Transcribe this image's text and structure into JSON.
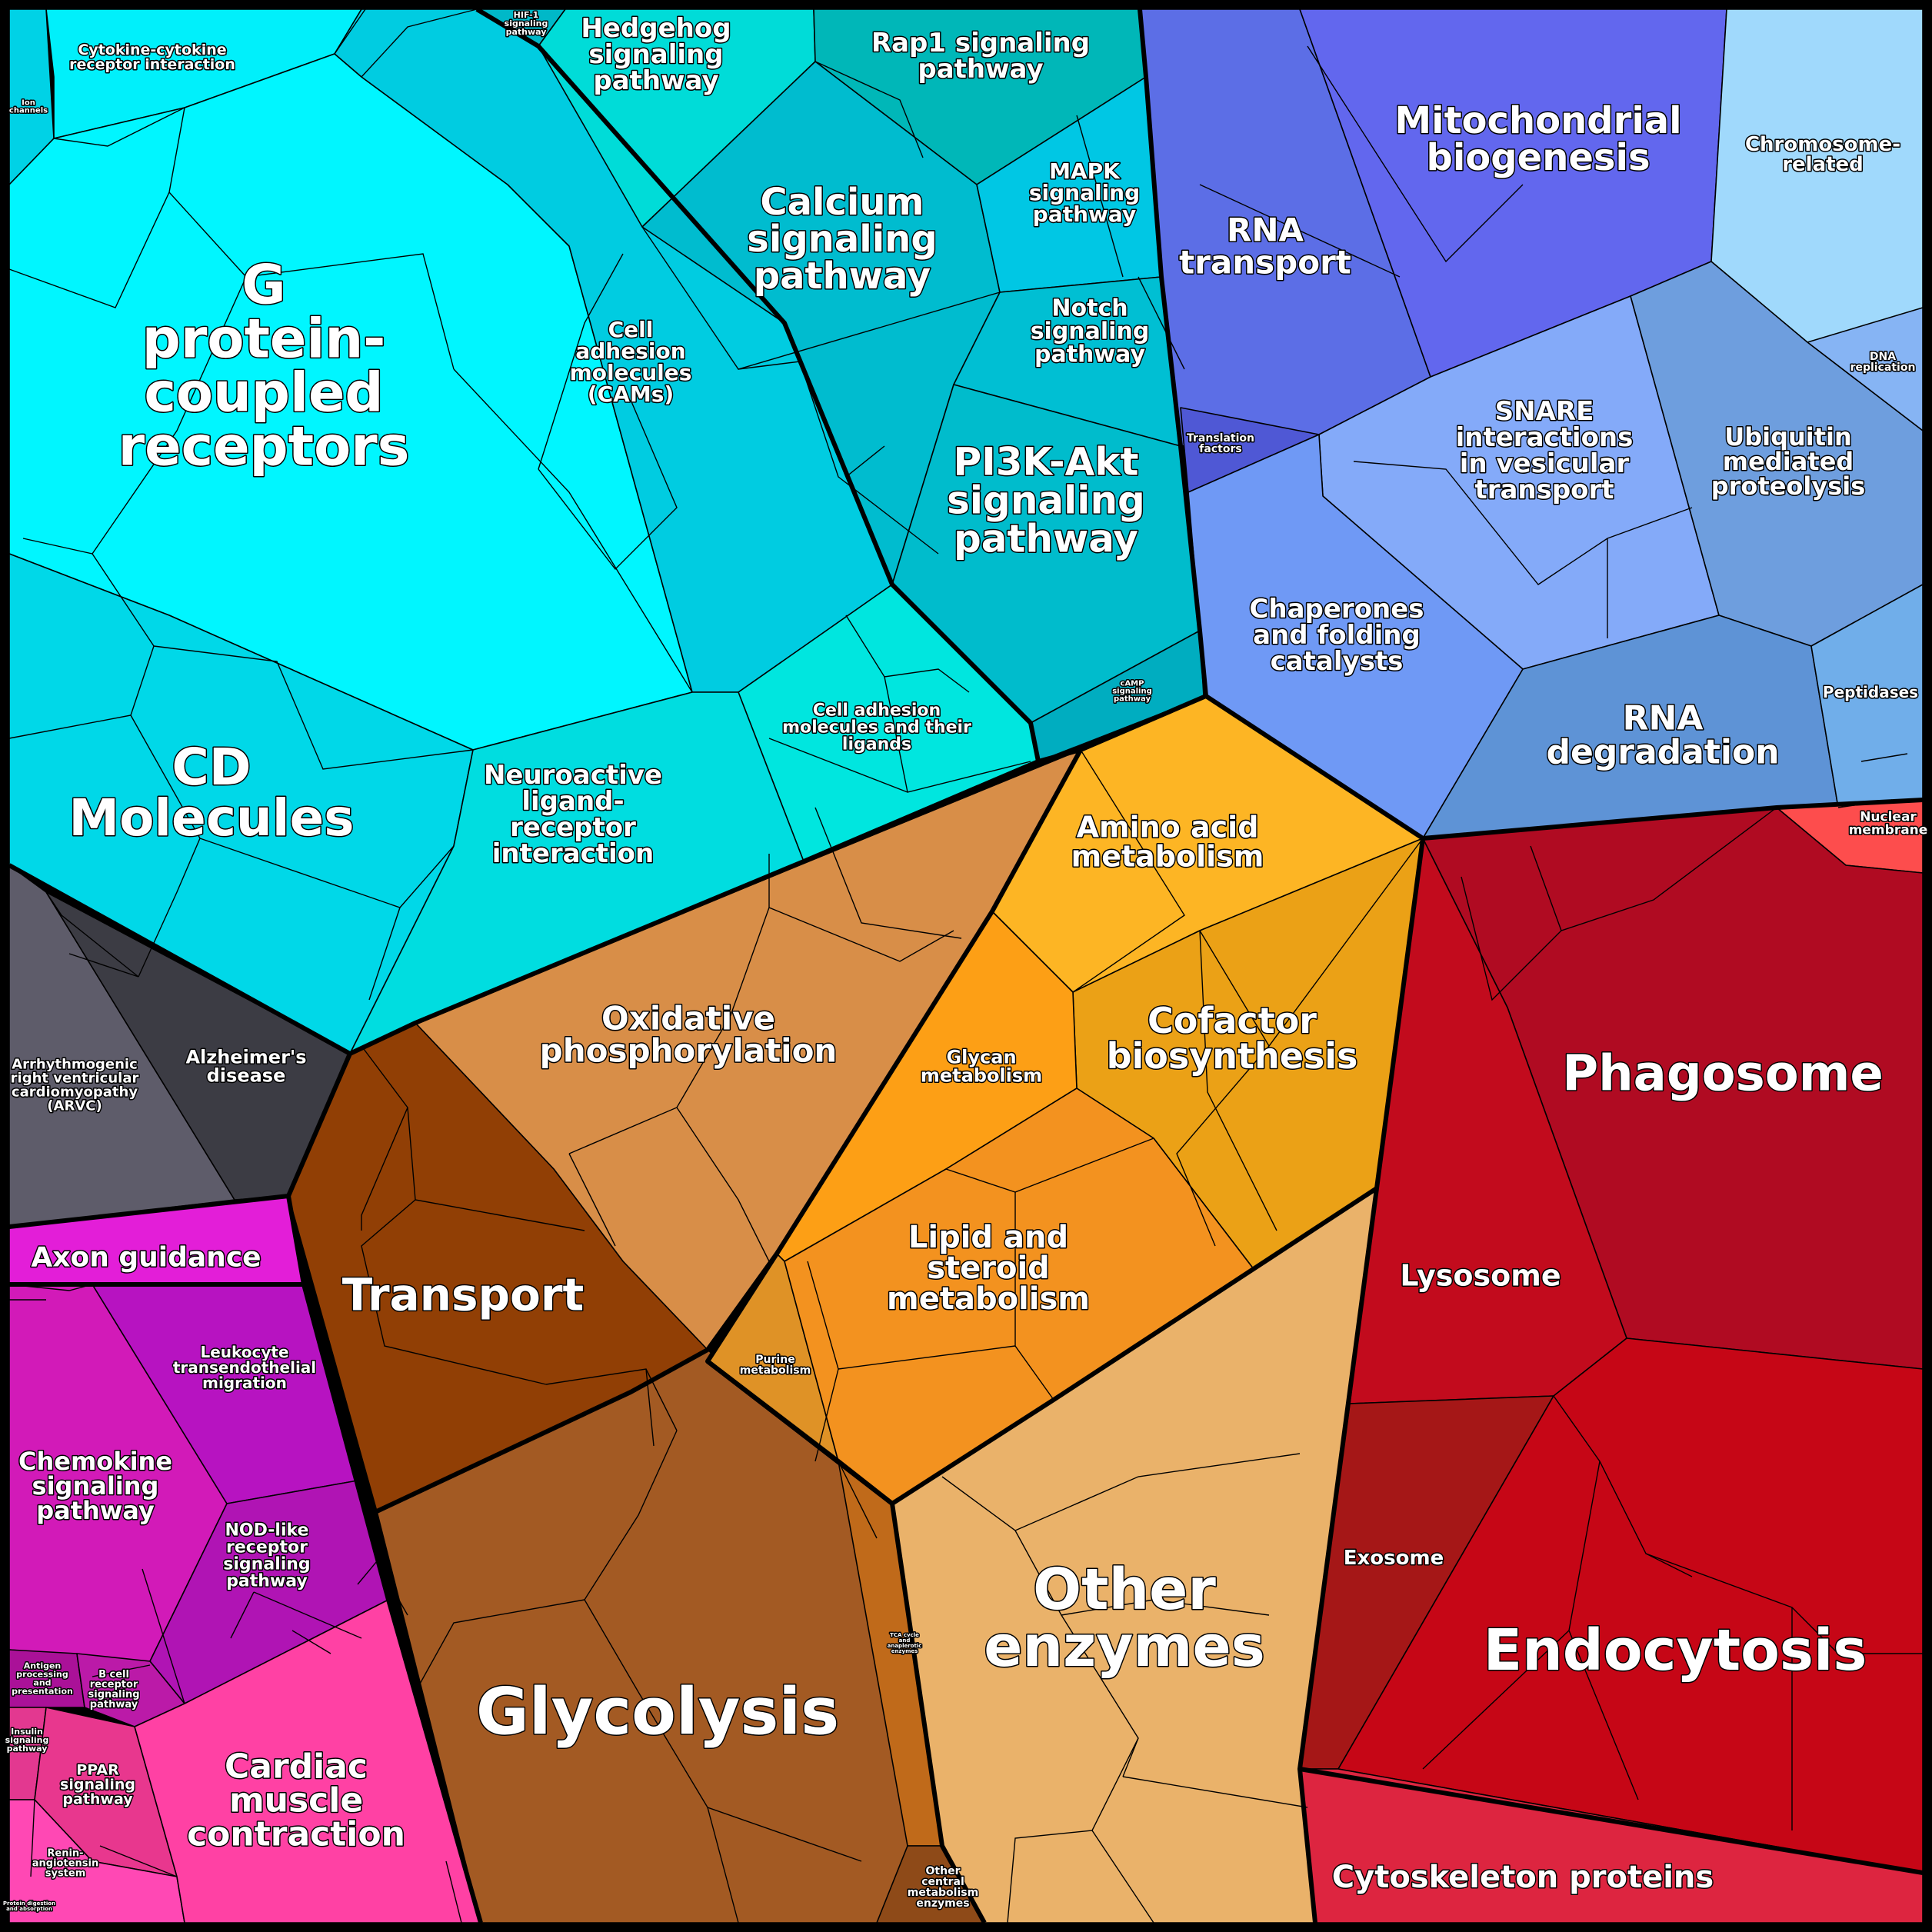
{
  "title": "",
  "categories": [
    {
      "name": "cyan",
      "color": "#00dbe6"
    },
    {
      "name": "blue",
      "color": "#6a7ef5"
    },
    {
      "name": "brown",
      "color": "#c4712a"
    },
    {
      "name": "orange",
      "color": "#f5a623"
    },
    {
      "name": "red",
      "color": "#b50b22"
    },
    {
      "name": "magenta",
      "color": "#c814c0"
    },
    {
      "name": "gray",
      "color": "#505058"
    }
  ],
  "labels": {
    "cytokine": "Cytokine-cytokine\nreceptor interaction",
    "ion_channels": "Ion\nchannels",
    "hif1": "HIF-1\nsignaling\npathway",
    "hedgehog": "Hedgehog\nsignaling\npathway",
    "rap1": "Rap1 signaling\npathway",
    "mito": "Mitochondrial\nbiogenesis",
    "chromosome": "Chromosome-\nrelated",
    "gpcr": "G\nprotein-\ncoupled\nreceptors",
    "calcium": "Calcium\nsignaling\npathway",
    "mapk": "MAPK\nsignaling\npathway",
    "rna_transport": "RNA\ntransport",
    "cams": "Cell\nadhesion\nmolecules\n(CAMs)",
    "notch": "Notch\nsignaling\npathway",
    "dna_replication": "DNA\nreplication",
    "translation_factors": "Translation\nfactors",
    "snare": "SNARE\ninteractions\nin vesicular\ntransport",
    "ubiquitin": "Ubiquitin\nmediated\nproteolysis",
    "pi3k": "PI3K-Akt\nsignaling\npathway",
    "chaperones": "Chaperones\nand folding\ncatalysts",
    "peptidases": "Peptidases",
    "camp": "cAMP\nsignaling\npathway",
    "cell_adhesion_ligands": "Cell adhesion\nmolecules and their\nligands",
    "rna_degradation": "RNA\ndegradation",
    "cd_molecules": "CD\nMolecules",
    "neuroactive": "Neuroactive\nligand-\nreceptor\ninteraction",
    "amino_acid": "Amino acid\nmetabolism",
    "nuclear_membrane": "Nuclear\nmembrane",
    "oxphos": "Oxidative\nphosphorylation",
    "cofactor": "Cofactor\nbiosynthesis",
    "phagosome": "Phagosome",
    "alzheimers": "Alzheimer's\ndisease",
    "arvc": "Arrhythmogenic\nright ventricular\ncardiomyopathy\n(ARVC)",
    "glycan": "Glycan\nmetabolism",
    "axon_guidance": "Axon guidance",
    "transport": "Transport",
    "lysosome": "Lysosome",
    "lipid": "Lipid and\nsteroid\nmetabolism",
    "purine": "Purine\nmetabolism",
    "leukocyte": "Leukocyte\ntransendothelial\nmigration",
    "chemokine": "Chemokine\nsignaling\npathway",
    "nod_like": "NOD-like\nreceptor\nsignaling\npathway",
    "exosome": "Exosome",
    "other_enzymes": "Other\nenzymes",
    "endocytosis": "Endocytosis",
    "glycolysis": "Glycolysis",
    "antigen": "Antigen\nprocessing\nand\npresentation",
    "b_cell": "B cell\nreceptor\nsignaling\npathway",
    "tca": "TCA cycle\nand\nanaplerotic\nenzymes",
    "insulin": "Insulin\nsignaling\npathway",
    "ppar": "PPAR\nsignaling\npathway",
    "cardiac": "Cardiac\nmuscle\ncontraction",
    "renin": "Renin-\nangiotensin\nsystem",
    "cytoskeleton": "Cytoskeleton proteins",
    "other_central": "Other\ncentral\nmetabolism\nenzymes",
    "protein_digestion": "Protein digestion\nand absorption"
  }
}
